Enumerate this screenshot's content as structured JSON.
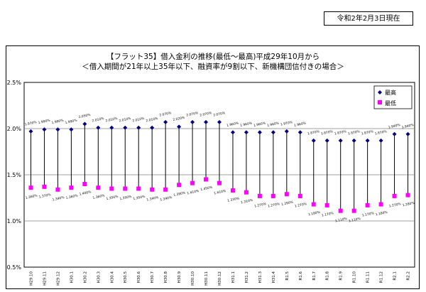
{
  "header": {
    "date": "令和2年2月3日現在"
  },
  "chart_data": {
    "type": "scatter",
    "title_line1": "【フラット35】借入金利の推移(最低～最高)平成29年10月から",
    "title_line2": "＜借入期間が21年以上35年以下、融資率が9割以下、新機構団信付きの場合＞",
    "categories": [
      "H29.10",
      "H29.11",
      "H29.12",
      "H30.1",
      "H30.2",
      "H30.3",
      "H30.4",
      "H30.5",
      "H30.6",
      "H30.7",
      "H30.8",
      "H30.9",
      "H30.10",
      "H30.11",
      "H30.12",
      "H31.1",
      "H31.2",
      "H31.3",
      "H31.4",
      "R1.5",
      "R1.6",
      "R1.7",
      "R1.8",
      "R1.9",
      "R1.10",
      "R1.11",
      "R1.12",
      "R2.1",
      "R2.2"
    ],
    "ylim": [
      0.5,
      2.5
    ],
    "yticks": [
      "0.5%",
      "1.0%",
      "1.5%",
      "2.0%",
      "2.5%"
    ],
    "grid": true,
    "legend_position": "top-right",
    "series": [
      {
        "name": "最高",
        "color": "#000080",
        "marker": "diamond",
        "values": [
          1.97,
          1.99,
          1.99,
          1.99,
          2.05,
          2.01,
          2.01,
          2.01,
          2.01,
          2.01,
          2.07,
          2.02,
          2.07,
          2.07,
          2.07,
          1.96,
          1.96,
          1.96,
          1.96,
          1.97,
          1.96,
          1.87,
          1.87,
          1.87,
          1.87,
          1.87,
          1.87,
          1.94,
          1.94
        ],
        "labels": [
          "1.970%",
          "1.990%",
          "1.990%",
          "1.990%",
          "2.050%",
          "2.010%",
          "2.010%",
          "2.010%",
          "2.010%",
          "2.010%",
          "2.070%",
          "2.020%",
          "2.070%",
          "2.070%",
          "2.070%",
          "1.960%",
          "1.960%",
          "1.960%",
          "1.960%",
          "1.970%",
          "1.960%",
          "1.870%",
          "1.870%",
          "1.870%",
          "1.870%",
          "1.870%",
          "1.870%",
          "1.940%",
          "1.940%"
        ]
      },
      {
        "name": "最低",
        "color": "#ff00ff",
        "marker": "square",
        "values": [
          1.36,
          1.37,
          1.34,
          1.36,
          1.4,
          1.36,
          1.35,
          1.35,
          1.35,
          1.34,
          1.34,
          1.39,
          1.41,
          1.45,
          1.41,
          1.33,
          1.31,
          1.27,
          1.27,
          1.29,
          1.27,
          1.18,
          1.17,
          1.11,
          1.11,
          1.17,
          1.18,
          1.27,
          1.28
        ],
        "labels": [
          "1.360%",
          "1.370%",
          "1.340%",
          "1.360%",
          "1.400%",
          "1.360%",
          "1.350%",
          "1.350%",
          "1.350%",
          "1.340%",
          "1.340%",
          "1.390%",
          "1.410%",
          "1.450%",
          "1.410%",
          "1.330%",
          "1.310%",
          "1.270%",
          "1.270%",
          "1.290%",
          "1.270%",
          "1.180%",
          "1.170%",
          "1.110%",
          "1.110%",
          "1.170%",
          "1.180%",
          "1.270%",
          "1.280%"
        ]
      }
    ]
  }
}
